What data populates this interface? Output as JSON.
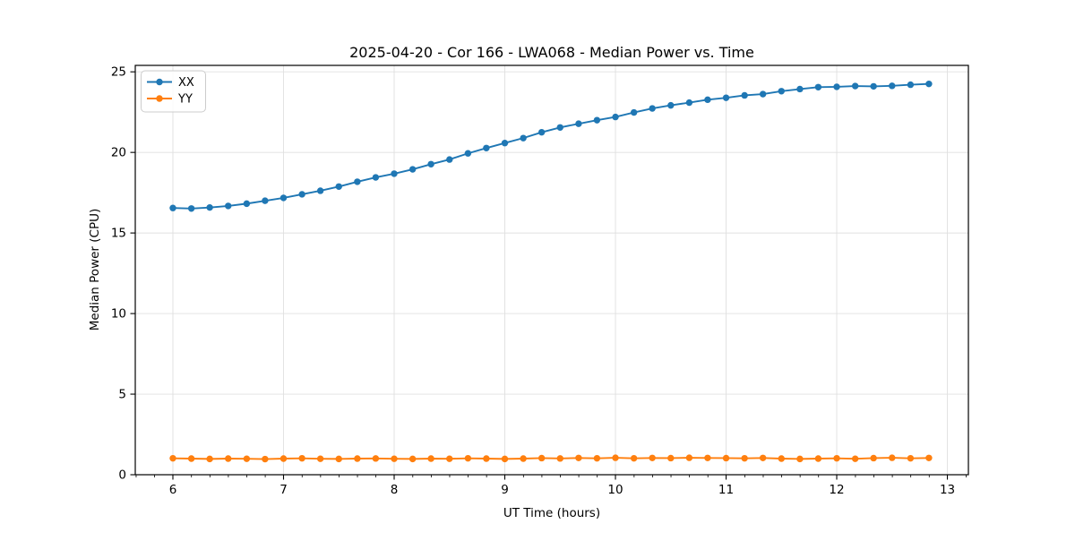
{
  "chart_data": {
    "type": "line",
    "title": "2025-04-20 - Cor 166 - LWA068 - Median Power vs. Time",
    "xlabel": "UT Time (hours)",
    "ylabel": "Median Power (CPU)",
    "xlim": [
      5.66,
      13.19
    ],
    "ylim": [
      0,
      25.4
    ],
    "x_ticks": [
      6,
      7,
      8,
      9,
      10,
      11,
      12,
      13
    ],
    "y_ticks": [
      0,
      5,
      10,
      15,
      20,
      25
    ],
    "x_minor_step": 0.1667,
    "grid": true,
    "grid_color": "#e0e0e0",
    "legend_position": "upper-left",
    "x": [
      6.0,
      6.167,
      6.333,
      6.5,
      6.667,
      6.833,
      7.0,
      7.167,
      7.333,
      7.5,
      7.667,
      7.833,
      8.0,
      8.167,
      8.333,
      8.5,
      8.667,
      8.833,
      9.0,
      9.167,
      9.333,
      9.5,
      9.667,
      9.833,
      10.0,
      10.167,
      10.333,
      10.5,
      10.667,
      10.833,
      11.0,
      11.167,
      11.333,
      11.5,
      11.667,
      11.833,
      12.0,
      12.167,
      12.333,
      12.5,
      12.667,
      12.833
    ],
    "series": [
      {
        "name": "XX",
        "color": "#1f77b4",
        "values": [
          16.55,
          16.52,
          16.58,
          16.68,
          16.82,
          17.0,
          17.18,
          17.4,
          17.62,
          17.88,
          18.18,
          18.45,
          18.68,
          18.95,
          19.27,
          19.56,
          19.94,
          20.27,
          20.58,
          20.89,
          21.25,
          21.55,
          21.78,
          22.0,
          22.2,
          22.48,
          22.73,
          22.92,
          23.09,
          23.27,
          23.39,
          23.54,
          23.62,
          23.8,
          23.93,
          24.05,
          24.07,
          24.12,
          24.1,
          24.13,
          24.2,
          24.25
        ]
      },
      {
        "name": "YY",
        "color": "#ff7f0e",
        "values": [
          1.02,
          1.0,
          0.98,
          1.0,
          0.99,
          0.97,
          1.0,
          1.02,
          0.99,
          0.98,
          1.0,
          1.01,
          0.99,
          0.98,
          1.0,
          0.99,
          1.02,
          1.0,
          0.98,
          1.0,
          1.03,
          1.01,
          1.04,
          1.02,
          1.05,
          1.02,
          1.04,
          1.03,
          1.05,
          1.04,
          1.03,
          1.02,
          1.04,
          1.0,
          0.98,
          1.0,
          1.02,
          0.99,
          1.03,
          1.05,
          1.02,
          1.04
        ]
      }
    ]
  }
}
